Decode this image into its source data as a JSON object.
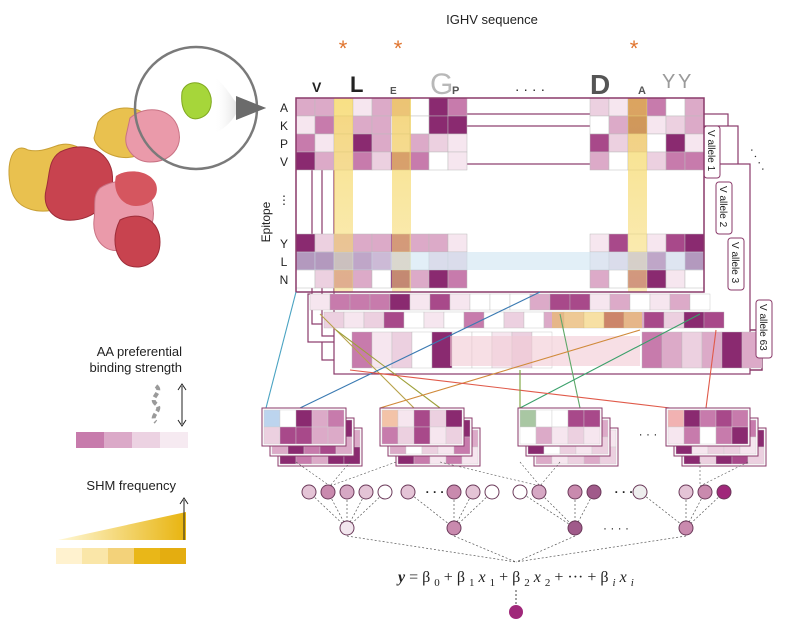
{
  "header": {
    "title": "IGHV sequence"
  },
  "axis": {
    "epitope_label": "Epitope"
  },
  "residues": {
    "top": [
      "A",
      "K",
      "P",
      "V"
    ],
    "vdots": "⋮",
    "bottom": [
      "Y",
      "L",
      "N"
    ]
  },
  "sequence_dots": "· · · ·",
  "asterisk": "*",
  "alleles": [
    "V allele 1",
    "V allele 2",
    "V allele 3",
    "V allele 63"
  ],
  "allele_dots": "· · · ·",
  "legend": {
    "aa_title_line1": "AA preferential",
    "aa_title_line2": "binding strength",
    "shm_title": "SHM frequency"
  },
  "hidden_dots": "· · ·",
  "layer3_dots": "· · · ·",
  "equation": {
    "y": "y",
    "eq": " = ",
    "b0": "β",
    "b0_sub": "0",
    "plus": " + ",
    "b1": "β",
    "b1_sub": "1",
    "x1": "x",
    "x1_sub": "1",
    "b2": "β",
    "b2_sub": "2",
    "x2": "x",
    "x2_sub": "2",
    "mid": " + ··· + ",
    "bi": "β",
    "bi_sub": "i",
    "xi": "x",
    "xi_sub": "i"
  },
  "colors": {
    "magenta": "#a0287a",
    "pink": "#e7a6c8",
    "gold": "#f0c24a",
    "orange_star": "#e0742e",
    "frame": "#8a3a6a",
    "node_fill": "#c98aae",
    "blue_highlight": "#cfe4f2"
  }
}
